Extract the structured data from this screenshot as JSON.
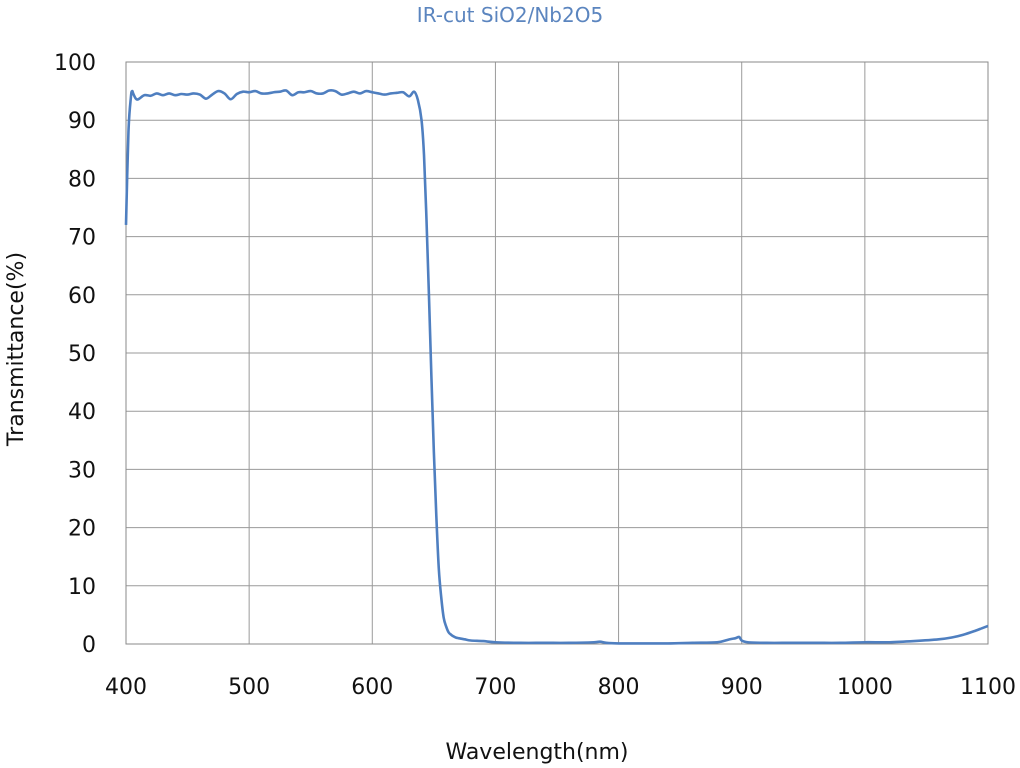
{
  "chart_data": {
    "type": "line",
    "title": "IR-cut SiO2/Nb2O5",
    "xlabel": "Wavelength(nm)",
    "ylabel": "Transmittance(%)",
    "xlim": [
      400,
      1100
    ],
    "ylim": [
      0,
      100
    ],
    "xticks": [
      400,
      500,
      600,
      700,
      800,
      900,
      1000,
      1100
    ],
    "yticks": [
      0,
      10,
      20,
      30,
      40,
      50,
      60,
      70,
      80,
      90,
      100
    ],
    "grid": true,
    "line_color": "#4f7fc0",
    "series": [
      {
        "x": [
          400,
          402,
          404,
          405,
          406,
          408,
          410,
          415,
          420,
          425,
          430,
          435,
          440,
          445,
          450,
          455,
          460,
          465,
          470,
          475,
          480,
          485,
          490,
          495,
          500,
          505,
          510,
          515,
          520,
          525,
          530,
          535,
          540,
          545,
          550,
          555,
          560,
          565,
          570,
          575,
          580,
          585,
          590,
          595,
          600,
          605,
          610,
          615,
          620,
          625,
          630,
          634,
          637,
          640,
          642,
          644,
          646,
          648,
          650,
          652,
          654,
          656,
          658,
          660,
          662,
          664,
          666,
          668,
          670,
          675,
          680,
          690,
          700,
          720,
          740,
          760,
          780,
          785,
          790,
          800,
          820,
          840,
          860,
          880,
          890,
          895,
          898,
          900,
          905,
          920,
          940,
          960,
          980,
          1000,
          1020,
          1040,
          1060,
          1070,
          1080,
          1090,
          1095,
          1100
        ],
        "y": [
          72,
          88,
          94,
          95,
          94.5,
          93.7,
          93.6,
          94.3,
          94.2,
          94.6,
          94.3,
          94.6,
          94.3,
          94.5,
          94.4,
          94.6,
          94.4,
          93.7,
          94.4,
          95.0,
          94.6,
          93.6,
          94.5,
          94.9,
          94.8,
          95.0,
          94.6,
          94.6,
          94.8,
          94.9,
          95.1,
          94.3,
          94.8,
          94.8,
          95.0,
          94.6,
          94.6,
          95.1,
          95.0,
          94.4,
          94.6,
          94.9,
          94.6,
          95.0,
          94.8,
          94.6,
          94.4,
          94.6,
          94.7,
          94.8,
          94.1,
          94.9,
          93.5,
          90,
          84,
          73,
          60,
          46,
          33,
          22,
          13,
          8,
          4.5,
          3,
          2,
          1.6,
          1.3,
          1.1,
          1.0,
          0.8,
          0.6,
          0.5,
          0.3,
          0.2,
          0.2,
          0.2,
          0.3,
          0.4,
          0.2,
          0.1,
          0.1,
          0.1,
          0.2,
          0.3,
          0.8,
          1.0,
          1.2,
          0.6,
          0.3,
          0.2,
          0.2,
          0.2,
          0.2,
          0.3,
          0.3,
          0.5,
          0.8,
          1.1,
          1.6,
          2.3,
          2.7,
          3.1
        ]
      }
    ]
  }
}
